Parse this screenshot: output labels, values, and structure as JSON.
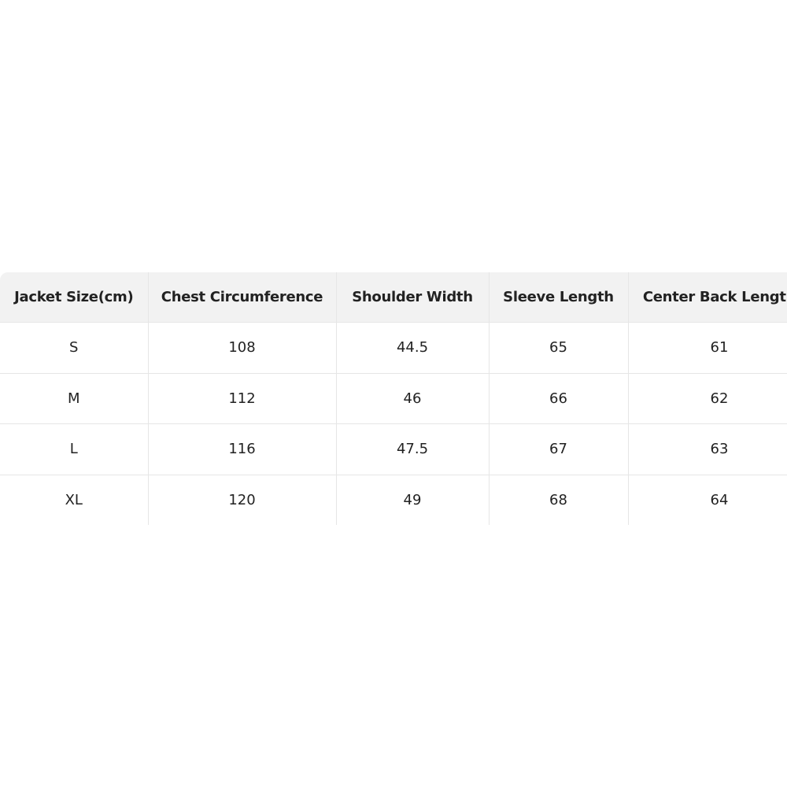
{
  "table": {
    "headers": [
      "Jacket Size(cm)",
      "Chest Circumference",
      "Shoulder Width",
      "Sleeve Length",
      "Center Back Length"
    ],
    "rows": [
      [
        "S",
        "108",
        "44.5",
        "65",
        "61"
      ],
      [
        "M",
        "112",
        "46",
        "66",
        "62"
      ],
      [
        "L",
        "116",
        "47.5",
        "67",
        "63"
      ],
      [
        "XL",
        "120",
        "49",
        "68",
        "64"
      ]
    ]
  },
  "colors": {
    "header_bg": "#f2f2f2",
    "border": "#e6e6e6",
    "text": "#222222"
  }
}
